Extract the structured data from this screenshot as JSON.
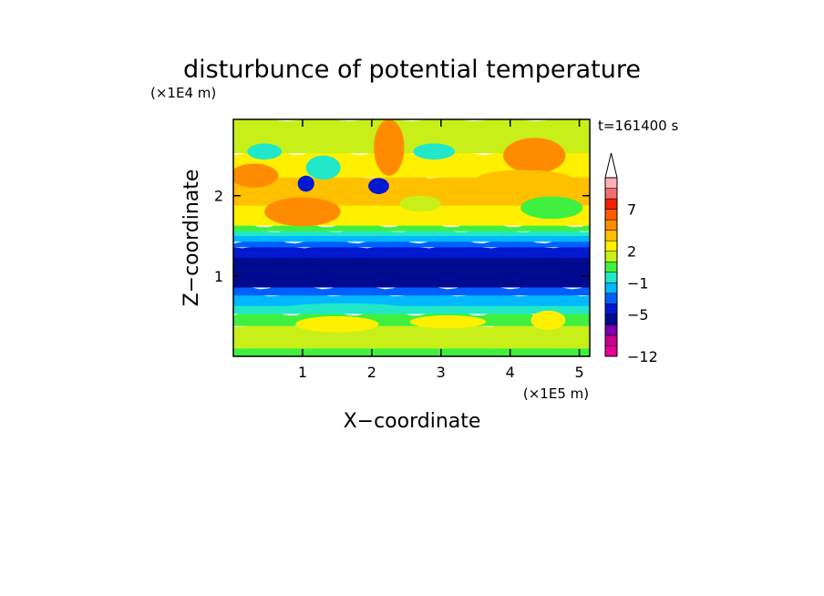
{
  "chart_data": {
    "type": "heatmap",
    "title": "disturbunce of potential temperature",
    "time_label": "t=161400 s",
    "xlabel": "X−coordinate",
    "ylabel": "Z−coordinate",
    "x_unit": "(×1E5 m)",
    "y_unit": "(×1E4 m)",
    "xlim": [
      0,
      5.15
    ],
    "ylim": [
      0,
      2.95
    ],
    "x_ticks": [
      {
        "value": 1,
        "label": "1"
      },
      {
        "value": 2,
        "label": "2"
      },
      {
        "value": 3,
        "label": "3"
      },
      {
        "value": 4,
        "label": "4"
      },
      {
        "value": 5,
        "label": "5"
      }
    ],
    "y_ticks": [
      {
        "value": 1,
        "label": "1"
      },
      {
        "value": 2,
        "label": "2"
      }
    ],
    "colorbar": {
      "levels": [
        {
          "lo": -12,
          "hi": -10,
          "color": "#e8009a"
        },
        {
          "lo": -10,
          "hi": -8,
          "color": "#c8008c"
        },
        {
          "lo": -8,
          "hi": -6,
          "color": "#7a00b0"
        },
        {
          "lo": -6,
          "hi": -5,
          "color": "#000a90"
        },
        {
          "lo": -5,
          "hi": -3,
          "color": "#0018d0"
        },
        {
          "lo": -3,
          "hi": -2,
          "color": "#0060ff"
        },
        {
          "lo": -2,
          "hi": -1,
          "color": "#00b8ff"
        },
        {
          "lo": -1,
          "hi": 0,
          "color": "#20e8c8"
        },
        {
          "lo": 0,
          "hi": 1,
          "color": "#40f040"
        },
        {
          "lo": 1,
          "hi": 2,
          "color": "#c8f018"
        },
        {
          "lo": 2,
          "hi": 3,
          "color": "#fff000"
        },
        {
          "lo": 3,
          "hi": 4,
          "color": "#ffc000"
        },
        {
          "lo": 4,
          "hi": 5,
          "color": "#ff8c00"
        },
        {
          "lo": 5,
          "hi": 7,
          "color": "#ff5c00"
        },
        {
          "lo": 7,
          "hi": 9,
          "color": "#f02000"
        },
        {
          "lo": 9,
          "hi": 11,
          "color": "#f07070"
        },
        {
          "lo": 11,
          "hi": 13,
          "color": "#ffb0b8"
        }
      ],
      "tick_labels": [
        {
          "value": 7,
          "label": "7"
        },
        {
          "value": 2,
          "label": "2"
        },
        {
          "value": -1,
          "label": "−1"
        },
        {
          "value": -5,
          "label": "−5"
        },
        {
          "value": -12,
          "label": "−12"
        }
      ],
      "overflow_arrow_color": "#ffffff"
    },
    "field_bands": [
      {
        "z_from": 0.0,
        "z_to": 0.12,
        "value": 0.5,
        "color": "#40f040"
      },
      {
        "z_from": 0.12,
        "z_to": 0.4,
        "value": 1.5,
        "color": "#c8f018"
      },
      {
        "z_from": 0.4,
        "z_to": 0.55,
        "value": 0.5,
        "color": "#40f040"
      },
      {
        "z_from": 0.55,
        "z_to": 0.65,
        "value": -0.5,
        "color": "#20e8c8"
      },
      {
        "z_from": 0.65,
        "z_to": 0.78,
        "value": -1.5,
        "color": "#00b8ff"
      },
      {
        "z_from": 0.78,
        "z_to": 0.88,
        "value": -2.5,
        "color": "#0060ff"
      },
      {
        "z_from": 0.88,
        "z_to": 1.25,
        "value": -5.5,
        "color": "#000a90"
      },
      {
        "z_from": 1.25,
        "z_to": 1.38,
        "value": -4,
        "color": "#0018d0"
      },
      {
        "z_from": 1.38,
        "z_to": 1.45,
        "value": -2.5,
        "color": "#0060ff"
      },
      {
        "z_from": 1.45,
        "z_to": 1.52,
        "value": -1.5,
        "color": "#00b8ff"
      },
      {
        "z_from": 1.52,
        "z_to": 1.58,
        "value": -0.5,
        "color": "#20e8c8"
      },
      {
        "z_from": 1.58,
        "z_to": 1.65,
        "value": 0.5,
        "color": "#40f040"
      },
      {
        "z_from": 1.65,
        "z_to": 1.9,
        "value": 2.5,
        "color": "#fff000"
      },
      {
        "z_from": 1.9,
        "z_to": 2.25,
        "value": 3.5,
        "color": "#ffc000"
      },
      {
        "z_from": 2.25,
        "z_to": 2.55,
        "value": 2.5,
        "color": "#fff000"
      },
      {
        "z_from": 2.55,
        "z_to": 2.95,
        "value": 1.5,
        "color": "#c8f018"
      }
    ],
    "field_blobs": [
      {
        "x": 1.0,
        "z": 1.8,
        "rx": 0.55,
        "rz": 0.18,
        "value": 4.5,
        "color": "#ff8c00"
      },
      {
        "x": 0.3,
        "z": 2.25,
        "rx": 0.35,
        "rz": 0.15,
        "value": 4.5,
        "color": "#ff8c00"
      },
      {
        "x": 2.25,
        "z": 2.6,
        "rx": 0.22,
        "rz": 0.35,
        "value": 4.5,
        "color": "#ff8c00"
      },
      {
        "x": 4.35,
        "z": 2.5,
        "rx": 0.45,
        "rz": 0.22,
        "value": 4.5,
        "color": "#ff8c00"
      },
      {
        "x": 4.2,
        "z": 2.2,
        "rx": 0.7,
        "rz": 0.12,
        "value": 3.5,
        "color": "#ffc000"
      },
      {
        "x": 1.05,
        "z": 2.15,
        "rx": 0.12,
        "rz": 0.1,
        "value": -3,
        "color": "#0018d0"
      },
      {
        "x": 2.1,
        "z": 2.12,
        "rx": 0.15,
        "rz": 0.1,
        "value": -3,
        "color": "#0018d0"
      },
      {
        "x": 1.3,
        "z": 2.35,
        "rx": 0.25,
        "rz": 0.15,
        "value": -0.5,
        "color": "#20e8c8"
      },
      {
        "x": 2.9,
        "z": 2.55,
        "rx": 0.3,
        "rz": 0.1,
        "value": -0.5,
        "color": "#20e8c8"
      },
      {
        "x": 0.45,
        "z": 2.55,
        "rx": 0.25,
        "rz": 0.1,
        "value": -0.5,
        "color": "#20e8c8"
      },
      {
        "x": 2.7,
        "z": 1.9,
        "rx": 0.3,
        "rz": 0.1,
        "value": 1.5,
        "color": "#c8f018"
      },
      {
        "x": 4.6,
        "z": 1.85,
        "rx": 0.45,
        "rz": 0.14,
        "value": 0.5,
        "color": "#40f040"
      },
      {
        "x": 1.5,
        "z": 0.4,
        "rx": 0.6,
        "rz": 0.1,
        "value": 2.5,
        "color": "#fff000"
      },
      {
        "x": 3.1,
        "z": 0.43,
        "rx": 0.55,
        "rz": 0.08,
        "value": 2.5,
        "color": "#fff000"
      },
      {
        "x": 4.55,
        "z": 0.45,
        "rx": 0.25,
        "rz": 0.12,
        "value": 2.5,
        "color": "#fff000"
      },
      {
        "x": 1.6,
        "z": 0.6,
        "rx": 0.9,
        "rz": 0.06,
        "value": -0.5,
        "color": "#20e8c8"
      },
      {
        "x": 4.3,
        "z": 1.1,
        "rx": 0.7,
        "rz": 0.1,
        "value": -6,
        "color": "#000a90"
      }
    ]
  }
}
